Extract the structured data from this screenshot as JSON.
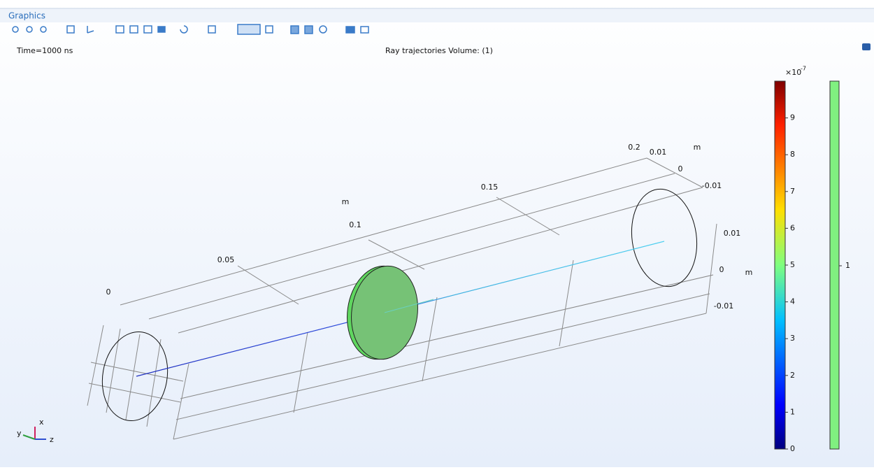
{
  "window": {
    "title": "Graphics"
  },
  "plot": {
    "time_label": "Time=1000 ns",
    "title": "Ray trajectories  Volume: (1)"
  },
  "axes": {
    "z_ticks": [
      "0",
      "0.05",
      "0.1",
      "0.15",
      "0.2"
    ],
    "z_unit": "m",
    "y_ticks": [
      "0.01",
      "0",
      "-0.01"
    ],
    "y_unit": "m",
    "x_ticks": [
      "0.01",
      "0",
      "-0.01"
    ],
    "x_unit": "m"
  },
  "colorbar": {
    "multiplier": "×10",
    "exponent": "-7",
    "ticks": [
      0,
      1,
      2,
      3,
      4,
      5,
      6,
      7,
      8,
      9
    ]
  },
  "volume_legend": {
    "label": "1"
  },
  "triad": {
    "x": "x",
    "y": "y",
    "z": "z"
  }
}
